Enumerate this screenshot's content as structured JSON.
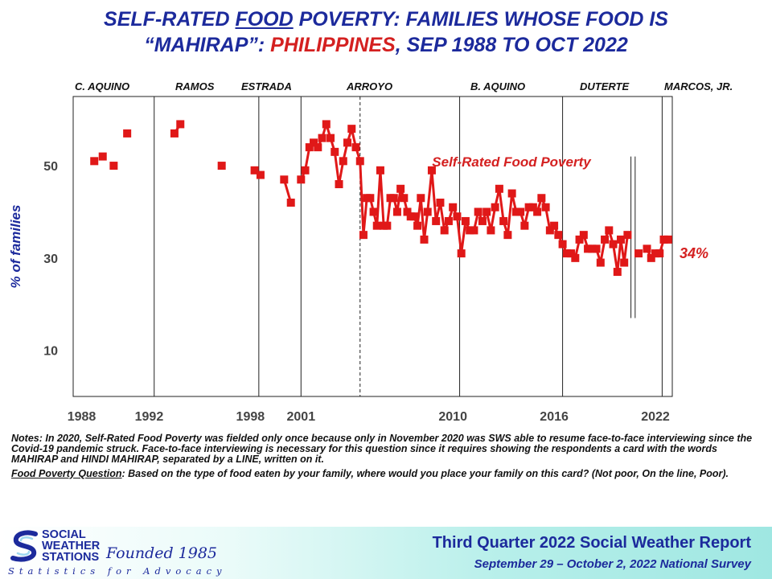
{
  "title": {
    "part1": "SELF-RATED ",
    "part2": "FOOD",
    "part3": " POVERTY: FAMILIES WHOSE FOOD IS",
    "part4": "“MAHIRAP”: ",
    "part5": "PHILIPPINES",
    "part6": ", SEP 1988 TO OCT 2022"
  },
  "administrations": [
    "C. AQUINO",
    "RAMOS",
    "ESTRADA",
    "ARROYO",
    "B. AQUINO",
    "DUTERTE",
    "MARCOS, JR."
  ],
  "colors": {
    "title": "#1c2a9c",
    "series": "#e01818",
    "accent": "#d42020"
  },
  "chart_data": {
    "type": "line",
    "ylabel": "% of families",
    "yticks": [
      10,
      30,
      50
    ],
    "xticks": [
      "1988",
      "1992",
      "1998",
      "2001",
      "2010",
      "2016",
      "2022"
    ],
    "xlim": [
      1987.5,
      2023.0
    ],
    "ylim": [
      0,
      65
    ],
    "grid": false,
    "series_label": "Self-Rated Food Poverty",
    "latest_label": "34%",
    "series": [
      {
        "name": "Self-Rated Food Poverty",
        "points": [
          [
            1988.75,
            51
          ],
          [
            1989.25,
            52
          ],
          [
            1989.9,
            50
          ],
          [
            1990.7,
            57
          ],
          [
            1993.5,
            57
          ],
          [
            1993.85,
            59
          ],
          [
            1996.3,
            50
          ],
          [
            1998.25,
            49
          ],
          [
            1998.6,
            48
          ],
          [
            2000.0,
            47
          ],
          [
            2000.4,
            42
          ],
          [
            2001.0,
            47
          ],
          [
            2001.25,
            49
          ],
          [
            2001.5,
            54
          ],
          [
            2001.75,
            55
          ],
          [
            2002.0,
            54
          ],
          [
            2002.25,
            56
          ],
          [
            2002.5,
            59
          ],
          [
            2002.75,
            56
          ],
          [
            2003.0,
            53
          ],
          [
            2003.25,
            46
          ],
          [
            2003.5,
            51
          ],
          [
            2003.75,
            55
          ],
          [
            2004.0,
            58
          ],
          [
            2004.25,
            54
          ],
          [
            2004.5,
            51
          ],
          [
            2004.7,
            35
          ],
          [
            2004.9,
            43
          ],
          [
            2005.1,
            43
          ],
          [
            2005.3,
            40
          ],
          [
            2005.5,
            37
          ],
          [
            2005.7,
            49
          ],
          [
            2005.9,
            37
          ],
          [
            2006.1,
            37
          ],
          [
            2006.3,
            43
          ],
          [
            2006.5,
            43
          ],
          [
            2006.7,
            40
          ],
          [
            2006.9,
            45
          ],
          [
            2007.1,
            43
          ],
          [
            2007.3,
            40
          ],
          [
            2007.5,
            39
          ],
          [
            2007.7,
            39
          ],
          [
            2007.9,
            37
          ],
          [
            2008.1,
            43
          ],
          [
            2008.3,
            34
          ],
          [
            2008.5,
            40
          ],
          [
            2008.75,
            49
          ],
          [
            2009.0,
            38
          ],
          [
            2009.25,
            42
          ],
          [
            2009.5,
            36
          ],
          [
            2009.75,
            38
          ],
          [
            2010.0,
            41
          ],
          [
            2010.25,
            39
          ],
          [
            2010.5,
            31
          ],
          [
            2010.75,
            38
          ],
          [
            2011.0,
            36
          ],
          [
            2011.25,
            36
          ],
          [
            2011.5,
            40
          ],
          [
            2011.75,
            38
          ],
          [
            2012.0,
            40
          ],
          [
            2012.25,
            36
          ],
          [
            2012.5,
            41
          ],
          [
            2012.75,
            45
          ],
          [
            2013.0,
            38
          ],
          [
            2013.25,
            35
          ],
          [
            2013.5,
            44
          ],
          [
            2013.75,
            40
          ],
          [
            2014.0,
            40
          ],
          [
            2014.25,
            37
          ],
          [
            2014.5,
            41
          ],
          [
            2014.75,
            41
          ],
          [
            2015.0,
            40
          ],
          [
            2015.25,
            43
          ],
          [
            2015.5,
            41
          ],
          [
            2015.75,
            36
          ],
          [
            2016.0,
            37
          ],
          [
            2016.25,
            35
          ],
          [
            2016.5,
            33
          ],
          [
            2016.75,
            31
          ],
          [
            2017.0,
            31
          ],
          [
            2017.25,
            30
          ],
          [
            2017.5,
            34
          ],
          [
            2017.75,
            35
          ],
          [
            2018.0,
            32
          ],
          [
            2018.25,
            32
          ],
          [
            2018.5,
            32
          ],
          [
            2018.75,
            29
          ],
          [
            2019.0,
            34
          ],
          [
            2019.25,
            36
          ],
          [
            2019.5,
            33
          ],
          [
            2019.75,
            27
          ],
          [
            2019.95,
            34
          ],
          [
            2020.15,
            29
          ],
          [
            2020.35,
            35
          ],
          [
            2021.0,
            31
          ],
          [
            2021.5,
            32
          ],
          [
            2021.75,
            30
          ],
          [
            2022.0,
            31
          ],
          [
            2022.25,
            31
          ],
          [
            2022.5,
            34
          ],
          [
            2022.75,
            34
          ]
        ]
      }
    ]
  },
  "notes": {
    "note1": "Notes: In 2020, Self-Rated Food Poverty was fielded only once because only in November 2020 was SWS able to resume face-to-face interviewing since the Covid-19 pandemic struck. Face-to-face interviewing is necessary for this question since it requires showing the respondents a card with the words MAHIRAP and HINDI MAHIRAP, separated by a LINE, written on it.",
    "question_label": "Food Poverty Question",
    "question_text": ":  Based on the type of food eaten by your family, where would you place your family on this card? (Not poor, On the line, Poor)."
  },
  "footer": {
    "org_line1": "SOCIAL",
    "org_line2": "WEATHER",
    "org_line3": "STATIONS",
    "founded": "Founded 1985",
    "tagline": "Statistics for Advocacy",
    "report_title": "Third Quarter 2022 Social Weather Report",
    "report_subtitle": "September 29 – October 2, 2022 National Survey"
  }
}
